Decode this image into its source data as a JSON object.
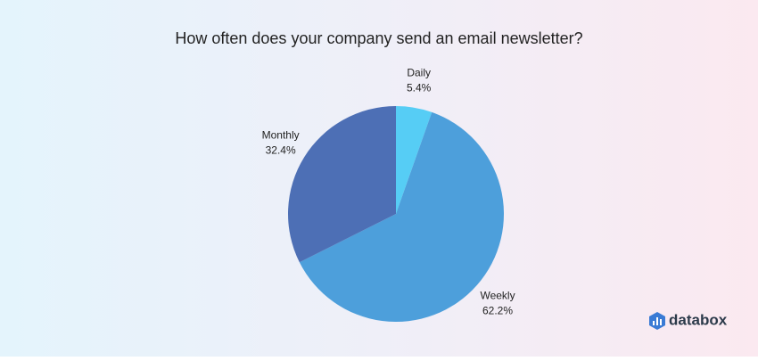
{
  "chart_data": {
    "type": "pie",
    "title": "How often does your company send an email newsletter?",
    "categories": [
      "Daily",
      "Weekly",
      "Monthly"
    ],
    "values": [
      5.4,
      62.2,
      32.4
    ],
    "value_labels": [
      "5.4%",
      "62.2%",
      "32.4%"
    ],
    "colors": [
      "#56cdf5",
      "#4d9fdb",
      "#4d6fb5"
    ]
  },
  "brand": "databox"
}
